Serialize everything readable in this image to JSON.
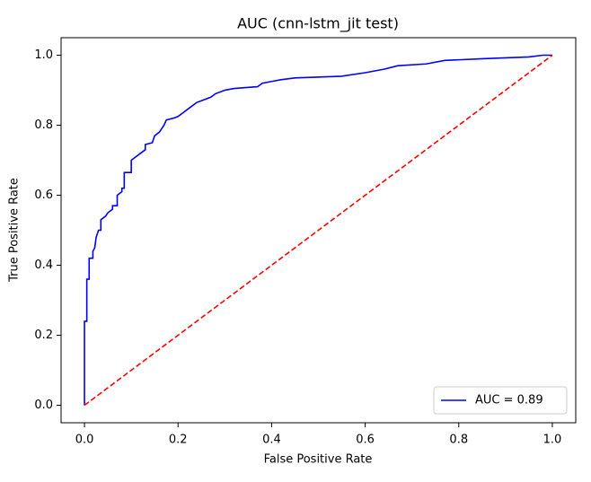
{
  "chart_data": {
    "type": "line",
    "title": "AUC (cnn-lstm_jit test)",
    "xlabel": "False Positive Rate",
    "ylabel": "True Positive Rate",
    "xlim": [
      -0.05,
      1.05
    ],
    "ylim": [
      -0.05,
      1.05
    ],
    "xticks": [
      {
        "value": 0,
        "label": "0.0"
      },
      0.2,
      0.4,
      0.6,
      0.8,
      {
        "value": 1,
        "label": "1.0"
      }
    ],
    "yticks": [
      {
        "value": 0,
        "label": "0.0"
      },
      0.2,
      0.4,
      0.6,
      0.8,
      {
        "value": 1,
        "label": "1.0"
      }
    ],
    "legend": "lower right",
    "series": [
      {
        "name": "AUC = 0.89",
        "color": "#0000ff",
        "linestyle": "solid",
        "x": [
          0,
          0,
          0.005,
          0.005,
          0.01,
          0.01,
          0.018,
          0.018,
          0.022,
          0.025,
          0.03,
          0.035,
          0.035,
          0.045,
          0.05,
          0.06,
          0.06,
          0.07,
          0.07,
          0.08,
          0.08,
          0.085,
          0.085,
          0.1,
          0.1,
          0.11,
          0.12,
          0.13,
          0.13,
          0.145,
          0.15,
          0.16,
          0.17,
          0.175,
          0.19,
          0.2,
          0.21,
          0.22,
          0.23,
          0.24,
          0.25,
          0.27,
          0.28,
          0.3,
          0.32,
          0.37,
          0.38,
          0.4,
          0.42,
          0.45,
          0.55,
          0.6,
          0.64,
          0.67,
          0.73,
          0.77,
          0.85,
          0.95,
          0.98,
          1
        ],
        "values": [
          0,
          0.24,
          0.24,
          0.36,
          0.36,
          0.42,
          0.42,
          0.44,
          0.45,
          0.48,
          0.5,
          0.5,
          0.53,
          0.54,
          0.55,
          0.56,
          0.57,
          0.57,
          0.6,
          0.61,
          0.62,
          0.62,
          0.665,
          0.665,
          0.7,
          0.71,
          0.72,
          0.73,
          0.745,
          0.75,
          0.77,
          0.78,
          0.8,
          0.815,
          0.82,
          0.825,
          0.835,
          0.845,
          0.855,
          0.865,
          0.87,
          0.88,
          0.89,
          0.9,
          0.905,
          0.91,
          0.92,
          0.925,
          0.93,
          0.935,
          0.94,
          0.95,
          0.96,
          0.97,
          0.975,
          0.985,
          0.99,
          0.995,
          1,
          1
        ]
      },
      {
        "color": "#ff0000",
        "linestyle": "dashed",
        "x": [
          0,
          1
        ],
        "values": [
          0,
          1
        ]
      }
    ]
  }
}
